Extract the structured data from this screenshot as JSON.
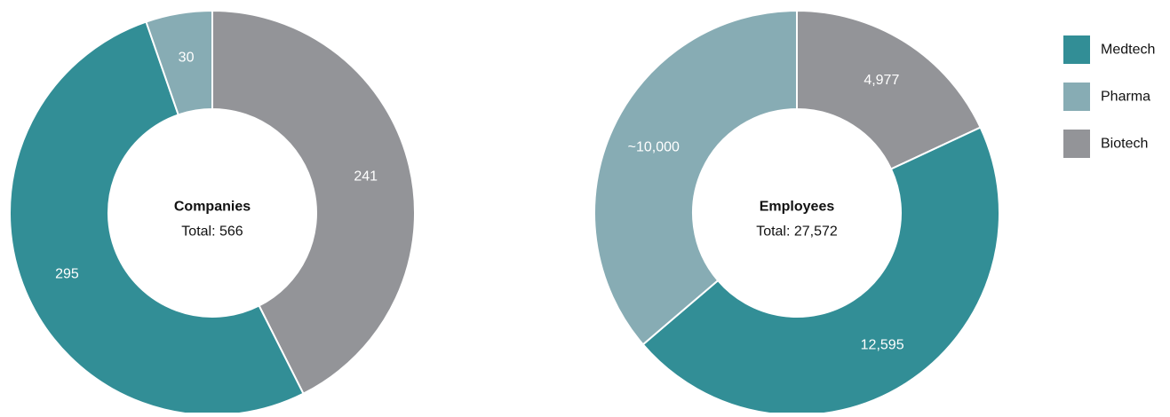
{
  "chart_data": [
    {
      "type": "pie",
      "variant": "donut",
      "center_title": "Companies",
      "center_subtitle": "Total: 566",
      "slices": [
        {
          "name": "Biotech",
          "value": 241,
          "label": "241"
        },
        {
          "name": "Medtech",
          "value": 295,
          "label": "295"
        },
        {
          "name": "Pharma",
          "value": 30,
          "label": "30"
        }
      ]
    },
    {
      "type": "pie",
      "variant": "donut",
      "center_title": "Employees",
      "center_subtitle": "Total: 27,572",
      "slices": [
        {
          "name": "Biotech",
          "value": 4977,
          "label": "4,977"
        },
        {
          "name": "Medtech",
          "value": 12595,
          "label": "12,595"
        },
        {
          "name": "Pharma",
          "value": 10000,
          "label": "~10,000"
        }
      ]
    }
  ],
  "legend": {
    "placement": "right",
    "items": [
      {
        "name": "Medtech",
        "color": "#328e96"
      },
      {
        "name": "Pharma",
        "color": "#87acb4"
      },
      {
        "name": "Biotech",
        "color": "#939498"
      }
    ]
  }
}
